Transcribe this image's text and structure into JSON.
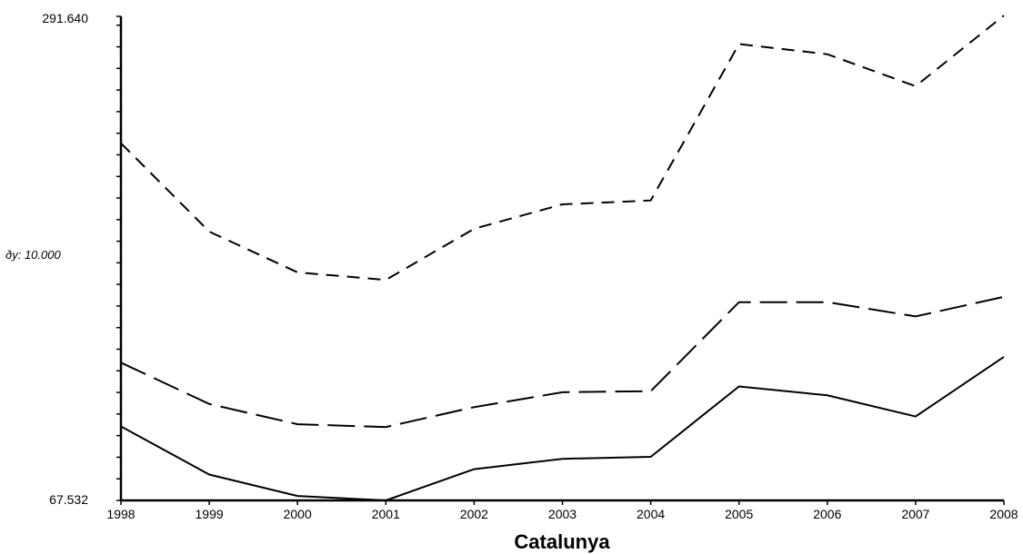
{
  "chart_data": {
    "type": "line",
    "title": "",
    "xlabel": "Catalunya",
    "ylabel": "",
    "x": [
      "1998",
      "1999",
      "2000",
      "2001",
      "2002",
      "2003",
      "2004",
      "2005",
      "2006",
      "2007",
      "2008"
    ],
    "ylim": [
      67.532,
      291.64
    ],
    "y_max_label": "291.640",
    "y_min_label": "67.532",
    "y_step_label": "ðy: 10.000",
    "grid": false,
    "legend": "none",
    "series": [
      {
        "style": "short-dash",
        "color": "#000000",
        "values": [
          232.9,
          192.0,
          173.1,
          169.6,
          193.3,
          204.6,
          206.4,
          278.8,
          274.1,
          259.3,
          292.0
        ]
      },
      {
        "style": "long-dash",
        "color": "#000000",
        "values": [
          131.3,
          112.2,
          102.8,
          101.5,
          110.7,
          117.6,
          118.1,
          159.3,
          159.3,
          152.7,
          161.8
        ]
      },
      {
        "style": "solid",
        "color": "#000000",
        "values": [
          101.8,
          79.5,
          69.6,
          67.532,
          82.0,
          86.8,
          87.7,
          120.3,
          116.2,
          106.4,
          134.0
        ]
      }
    ]
  }
}
